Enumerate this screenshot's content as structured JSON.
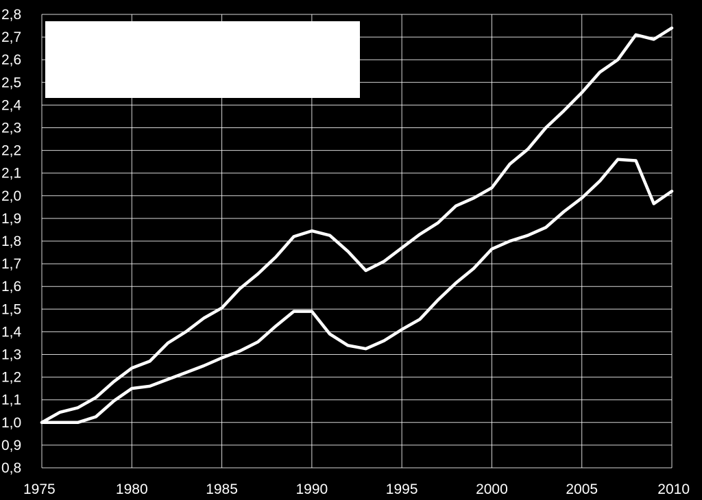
{
  "chart_data": {
    "type": "line",
    "xlim": [
      1975,
      2010
    ],
    "ylim": [
      0.8,
      2.8
    ],
    "x_ticks": [
      1975,
      1980,
      1985,
      1990,
      1995,
      2000,
      2005,
      2010
    ],
    "x_tick_labels": [
      "1975",
      "1980",
      "1985",
      "1990",
      "1995",
      "2000",
      "2005",
      "2010"
    ],
    "y_ticks": [
      0.8,
      0.9,
      1.0,
      1.1,
      1.2,
      1.3,
      1.4,
      1.5,
      1.6,
      1.7,
      1.8,
      1.9,
      2.0,
      2.1,
      2.2,
      2.3,
      2.4,
      2.5,
      2.6,
      2.7,
      2.8
    ],
    "y_tick_labels": [
      "0,8",
      "0,9",
      "1,0",
      "1,1",
      "1,2",
      "1,3",
      "1,4",
      "1,5",
      "1,6",
      "1,7",
      "1,8",
      "1,9",
      "2,0",
      "2,1",
      "2,2",
      "2,3",
      "2,4",
      "2,5",
      "2,6",
      "2,7",
      "2,8"
    ],
    "grid": true,
    "legend": "top-left",
    "x": [
      1975,
      1976,
      1977,
      1978,
      1979,
      1980,
      1981,
      1982,
      1983,
      1984,
      1985,
      1986,
      1987,
      1988,
      1989,
      1990,
      1991,
      1992,
      1993,
      1994,
      1995,
      1996,
      1997,
      1998,
      1999,
      2000,
      2001,
      2002,
      2003,
      2004,
      2005,
      2006,
      2007,
      2008,
      2009,
      2010
    ],
    "series": [
      {
        "values": [
          1.0,
          1.045,
          1.065,
          1.11,
          1.18,
          1.24,
          1.27,
          1.35,
          1.4,
          1.46,
          1.505,
          1.59,
          1.655,
          1.73,
          1.82,
          1.845,
          1.825,
          1.755,
          1.67,
          1.71,
          1.77,
          1.83,
          1.88,
          1.955,
          1.99,
          2.035,
          2.14,
          2.205,
          2.3,
          2.375,
          2.455,
          2.545,
          2.6,
          2.71,
          2.69,
          2.74
        ],
        "color": "#ffffff"
      },
      {
        "values": [
          1.0,
          1.0,
          1.0,
          1.025,
          1.095,
          1.15,
          1.16,
          1.19,
          1.22,
          1.25,
          1.285,
          1.315,
          1.355,
          1.425,
          1.49,
          1.49,
          1.39,
          1.34,
          1.325,
          1.36,
          1.41,
          1.455,
          1.54,
          1.615,
          1.68,
          1.765,
          1.8,
          1.825,
          1.86,
          1.93,
          1.99,
          2.065,
          2.16,
          2.155,
          1.965,
          2.02
        ],
        "color": "#ffffff"
      }
    ]
  }
}
